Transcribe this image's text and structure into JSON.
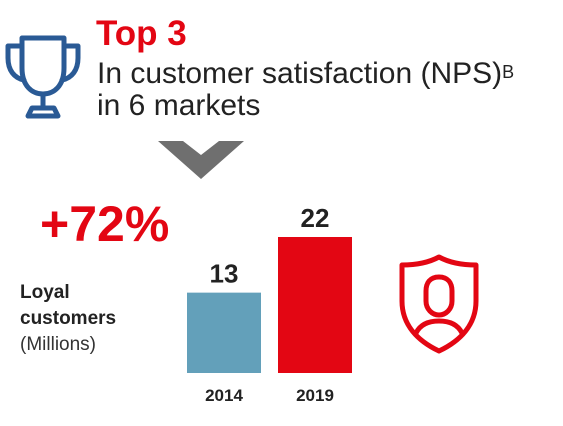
{
  "header": {
    "rank": "Top 3",
    "line1": "In customer satisfaction (NPS)",
    "superscript": "B",
    "line2": "in 6 markets"
  },
  "growth_label": "+72%",
  "legend": {
    "title_line1": "Loyal",
    "title_line2": "customers",
    "unit": "(Millions)"
  },
  "icons": {
    "trophy": "trophy-icon",
    "chevron": "chevron-down-icon",
    "shield": "shield-user-icon"
  },
  "colors": {
    "accent": "#e30613",
    "bar_2014": "#63a0ba",
    "bar_2019": "#e30613",
    "icon_blue": "#2a5a95"
  },
  "chart_data": {
    "type": "bar",
    "categories": [
      "2014",
      "2019"
    ],
    "values": [
      13,
      22
    ],
    "ylim": [
      0,
      22
    ],
    "grid": false,
    "data_labels": true
  }
}
